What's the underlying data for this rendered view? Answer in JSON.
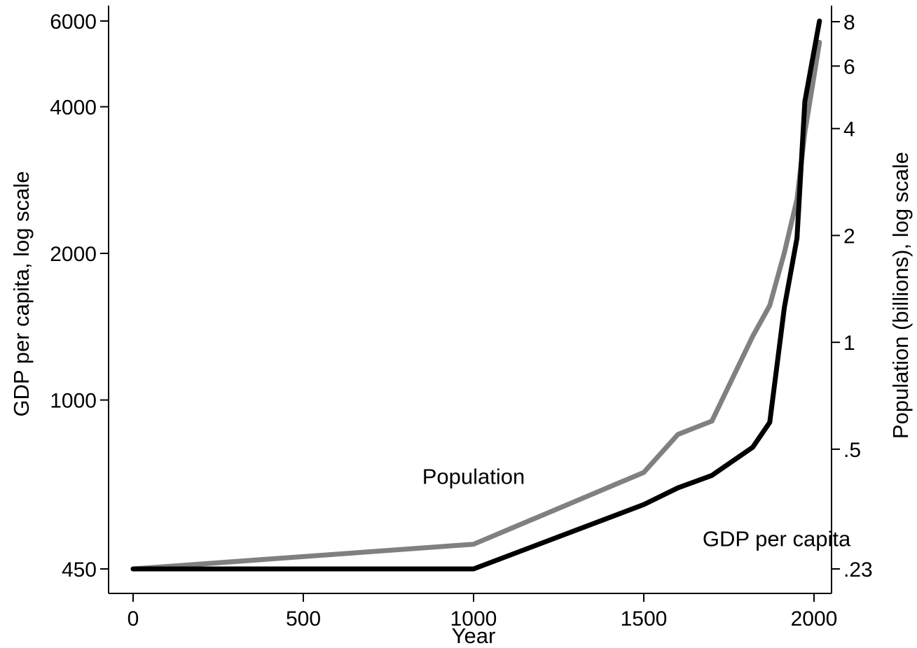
{
  "chart_data": {
    "type": "line",
    "title": "",
    "xlabel": "Year",
    "ylabel_left": "GDP per capita, log scale",
    "ylabel_right": "Population (billions), log scale",
    "x_ticks": [
      0,
      500,
      1000,
      1500,
      2000
    ],
    "x_tick_labels": [
      "0",
      "500",
      "1000",
      "1500",
      "2000"
    ],
    "x_range": [
      0,
      2016
    ],
    "y_left_scale": "log",
    "y_left_range": [
      450,
      6000
    ],
    "y_left_ticks": [
      450,
      1000,
      2000,
      4000,
      6000
    ],
    "y_left_tick_labels": [
      "450",
      "1000",
      "2000",
      "4000",
      "6000"
    ],
    "y_right_scale": "log",
    "y_right_range": [
      0.23,
      8
    ],
    "y_right_ticks": [
      0.23,
      0.5,
      1,
      2,
      4,
      6,
      8
    ],
    "y_right_tick_labels": [
      ".23",
      ".5",
      "1",
      "2",
      "4",
      "6",
      "8"
    ],
    "grid": false,
    "legend": "none",
    "series": [
      {
        "name": "GDP per capita",
        "axis": "left",
        "color": "#000000",
        "x": [
          0,
          1000,
          1500,
          1600,
          1700,
          1820,
          1870,
          1913,
          1950,
          1973,
          2016
        ],
        "y": [
          450,
          450,
          610,
          660,
          700,
          800,
          900,
          1550,
          2150,
          4100,
          6000
        ]
      },
      {
        "name": "Population",
        "axis": "right",
        "color": "#808080",
        "x": [
          0,
          1000,
          1500,
          1600,
          1700,
          1820,
          1870,
          1913,
          1950,
          1973,
          2016
        ],
        "y": [
          0.23,
          0.27,
          0.43,
          0.55,
          0.6,
          1.04,
          1.27,
          1.79,
          2.53,
          3.9,
          7.0
        ]
      }
    ],
    "annotations": [
      {
        "text": "Population",
        "series": "Population",
        "x": 1000,
        "y_right": 0.42
      },
      {
        "text": "GDP per capita",
        "series": "GDP per capita",
        "x": 1890,
        "y_left": 520
      }
    ]
  }
}
